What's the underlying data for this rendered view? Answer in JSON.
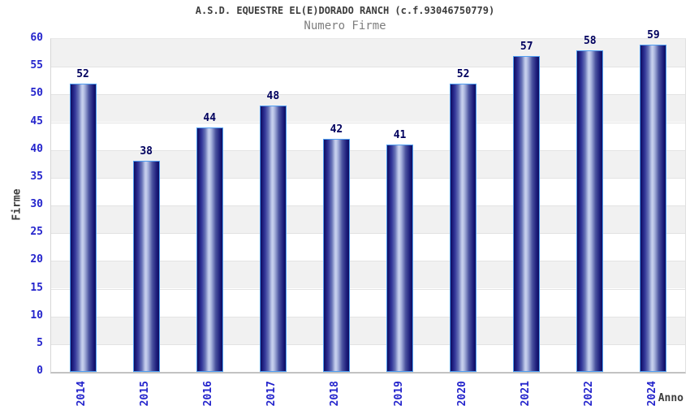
{
  "chart_data": {
    "type": "bar",
    "title": "A.S.D. EQUESTRE EL(E)DORADO RANCH (c.f.93046750779)",
    "subtitle": "Numero Firme",
    "xlabel": "Anno",
    "ylabel": "Firme",
    "categories": [
      "2014",
      "2015",
      "2016",
      "2017",
      "2018",
      "2019",
      "2020",
      "2021",
      "2022",
      "2024"
    ],
    "values": [
      52,
      38,
      44,
      48,
      42,
      41,
      52,
      57,
      58,
      59
    ],
    "ylim": [
      0,
      60
    ],
    "ytick_step": 5,
    "yticks": [
      0,
      5,
      10,
      15,
      20,
      25,
      30,
      35,
      40,
      45,
      50,
      55,
      60
    ],
    "grid": "horizontal-bands-every-5-units",
    "legend": "none",
    "colors": {
      "bar_edge": "#0e0e5e",
      "bar_highlight": "#c9d2ee",
      "bar_border": "#4f9ef2",
      "tick_label": "#2424cc",
      "value_label": "#00005e",
      "band_gray": "#f1f1f1",
      "band_white": "#ffffff",
      "title_text": "#3d3d3d",
      "subtitle_text": "#7e7e7e"
    }
  }
}
